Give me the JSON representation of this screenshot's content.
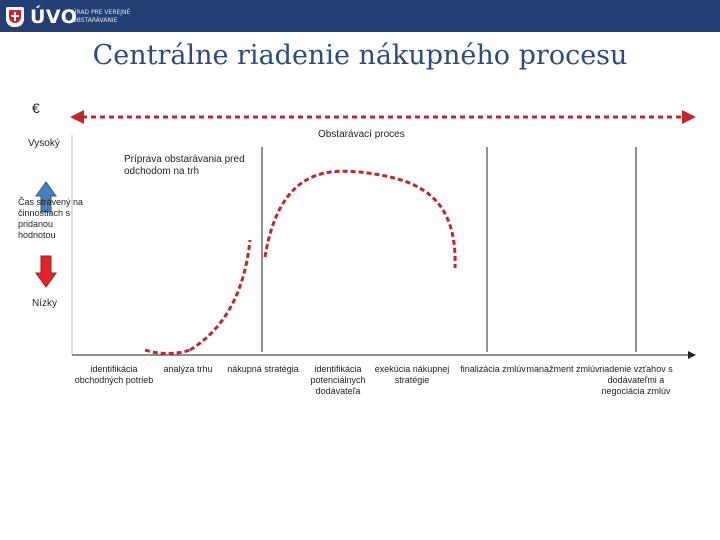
{
  "header": {
    "logo_mark": "ÚVO",
    "logo_text": "ÚRAD PRE VEREJNÉ OBSTARÁVANIE"
  },
  "title": "Centrálne riadenie nákupného procesu",
  "labels": {
    "currency": "€",
    "high": "Vysoký",
    "low": "Nízky",
    "y_axis": "Čas strávený na činnostiach s pridanou hodnotou",
    "process": "Obstarávací proces",
    "preparation": "Príprava obstarávania pred odchodom na trh"
  },
  "stages": [
    "identifikácia obchodných potrieb",
    "analýza trhu",
    "nákupná stratégia",
    "identifikácia potenciálnych dodávateľa",
    "exekúcia nákupnej stratégie",
    "finalizácia zmlúv",
    "manažment zmlúv",
    "riadenie vzťahov s dodávateľmi a negociácia zmlúv"
  ],
  "colors": {
    "header_bg": "#243f73",
    "title": "#2f4b7c",
    "curve": "#c0272d",
    "arrow_up": "#4a7ebb",
    "arrow_down": "#e0262a"
  }
}
